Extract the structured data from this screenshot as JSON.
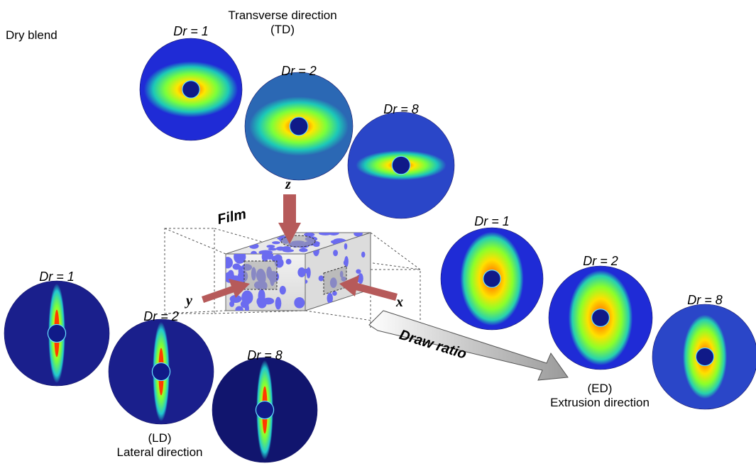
{
  "header": {
    "dry_blend": "Dry blend",
    "td_title_line1": "Transverse direction",
    "td_title_line2": "(TD)"
  },
  "film_label": "Film",
  "draw_ratio_label": "Draw ratio",
  "axes": {
    "x": "x",
    "y": "y",
    "z": "z"
  },
  "directions": {
    "td": {
      "patterns": [
        {
          "label": "Dr = 1",
          "shape": "horizontal-ellipse",
          "background": "#1f2bd6"
        },
        {
          "label": "Dr = 2",
          "shape": "horizontal-ellipse",
          "background": "#2b68b4"
        },
        {
          "label": "Dr = 8",
          "shape": "horizontal-streak",
          "background": "#2a46c8"
        }
      ]
    },
    "ed": {
      "line1": "(ED)",
      "line2": "Extrusion direction",
      "patterns": [
        {
          "label": "Dr = 1",
          "shape": "vertical-ellipse",
          "background": "#1f2bd6"
        },
        {
          "label": "Dr = 2",
          "shape": "vertical-ellipse",
          "background": "#1f2bd6"
        },
        {
          "label": "Dr = 8",
          "shape": "vertical-lens",
          "background": "#2a46c8"
        }
      ]
    },
    "ld": {
      "line1": "(LD)",
      "line2": "Lateral direction",
      "patterns": [
        {
          "label": "Dr = 1",
          "shape": "vertical-streak",
          "background": "#1a1f8c"
        },
        {
          "label": "Dr = 2",
          "shape": "vertical-streak",
          "background": "#1a1f8c"
        },
        {
          "label": "Dr = 8",
          "shape": "vertical-streak",
          "background": "#11156e"
        }
      ]
    }
  },
  "colors": {
    "arrow": "#b65a5a",
    "droplet": "#6b6bf0",
    "beam_stop": "#101a88",
    "beam_ring": "#66e0ff"
  }
}
